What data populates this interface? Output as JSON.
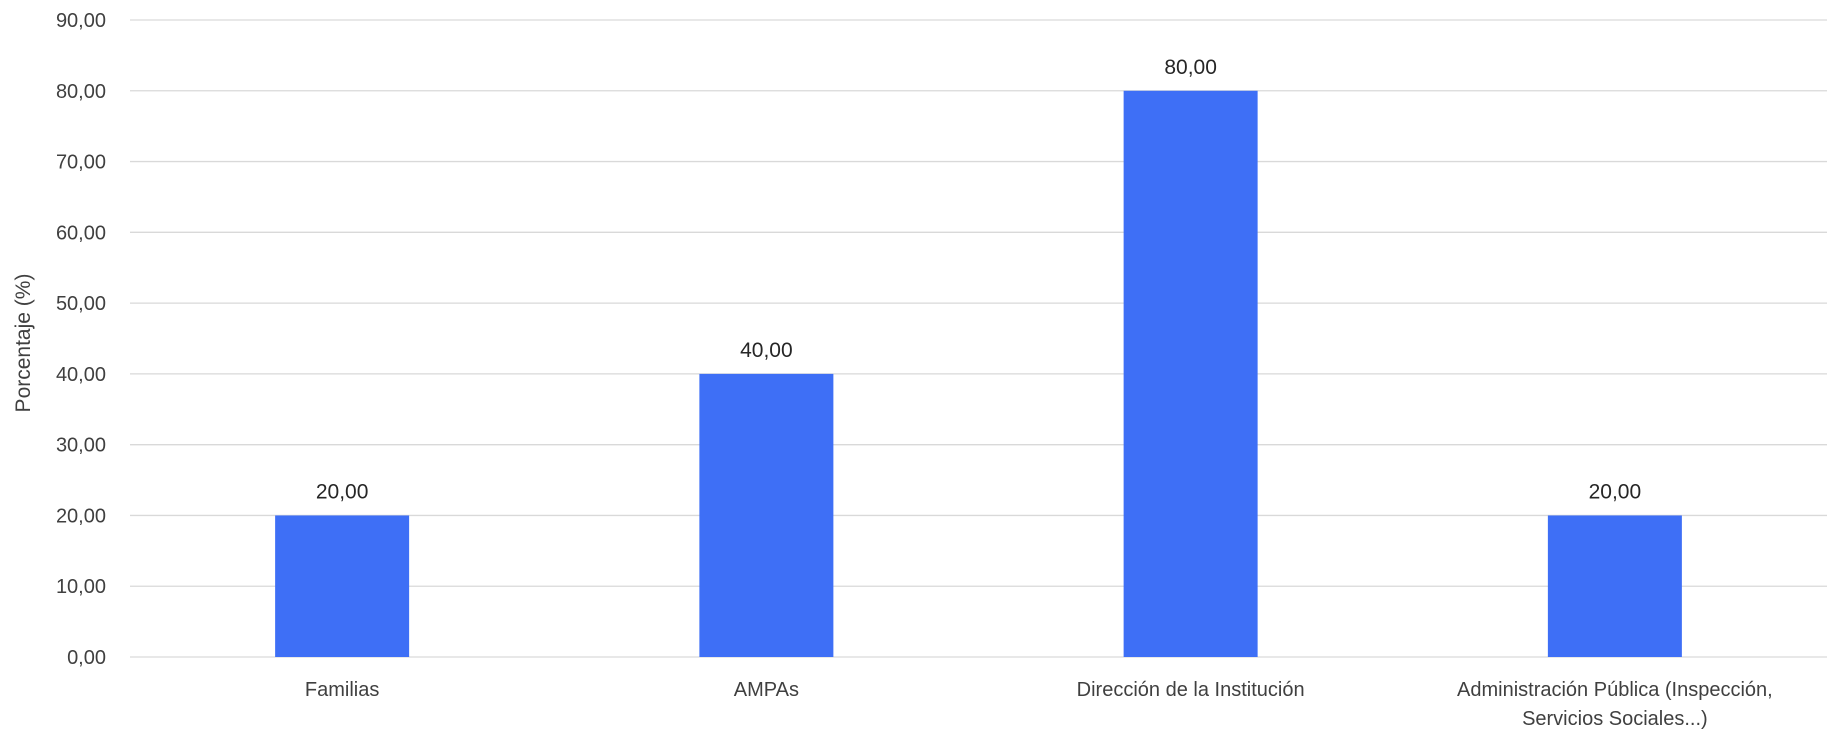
{
  "chart_data": {
    "type": "bar",
    "categories": [
      [
        "Familias"
      ],
      [
        "AMPAs"
      ],
      [
        "Dirección de la Institución"
      ],
      [
        "Administración Pública (Inspección,",
        "Servicios Sociales...)"
      ]
    ],
    "values": [
      20,
      40,
      80,
      20
    ],
    "value_labels": [
      "20,00",
      "40,00",
      "80,00",
      "20,00"
    ],
    "y_ticks": [
      "0,00",
      "10,00",
      "20,00",
      "30,00",
      "40,00",
      "50,00",
      "60,00",
      "70,00",
      "80,00",
      "90,00"
    ],
    "ylim": [
      0,
      90
    ],
    "ylabel": "Porcentaje (%)",
    "xlabel": "",
    "title": "",
    "grid": true,
    "bar_color": "#3e6ff6"
  }
}
